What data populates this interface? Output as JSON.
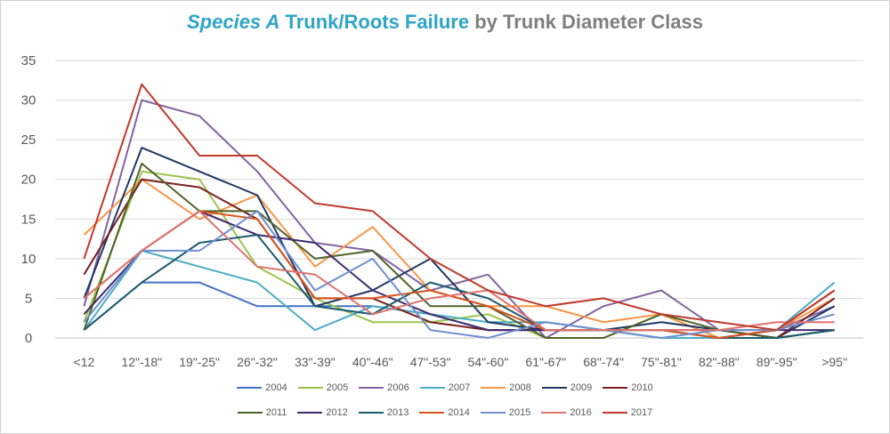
{
  "title": {
    "part1": "Species A",
    "part2": "Trunk/Roots  Failure",
    "part3": "by Trunk Diameter Class"
  },
  "chart_data": {
    "type": "line",
    "title": "Species A Trunk/Roots  Failure by Trunk Diameter Class",
    "xlabel": "",
    "ylabel": "",
    "ylim": [
      0,
      35
    ],
    "yticks": [
      0,
      5,
      10,
      15,
      20,
      25,
      30,
      35
    ],
    "grid": true,
    "legend_position": "bottom",
    "categories": [
      "<12",
      "12\"-18\"",
      "19\"-25\"",
      "26\"-32\"",
      "33\"-39\"",
      "40\"-46\"",
      "47\"-53\"",
      "54\"-60\"",
      "61\"-67\"",
      "68\"-74\"",
      "75\"-81\"",
      "82\"-88\"",
      "89\"-95\"",
      ">95\""
    ],
    "series": [
      {
        "name": "2004",
        "color": "#4472c4",
        "values": [
          1,
          7,
          7,
          4,
          4,
          4,
          3,
          1,
          1,
          1,
          0,
          0,
          0,
          1
        ]
      },
      {
        "name": "2005",
        "color": "#9bc54a",
        "values": [
          2,
          21,
          20,
          9,
          5,
          2,
          2,
          3,
          0,
          0,
          3,
          0,
          0,
          1
        ]
      },
      {
        "name": "2006",
        "color": "#8064a2",
        "values": [
          4,
          30,
          28,
          21,
          12,
          11,
          6,
          8,
          0,
          4,
          6,
          1,
          1,
          4
        ]
      },
      {
        "name": "2007",
        "color": "#4bacc6",
        "values": [
          1,
          11,
          9,
          7,
          1,
          4,
          3,
          2,
          2,
          1,
          0,
          0,
          1,
          7
        ]
      },
      {
        "name": "2008",
        "color": "#f79646",
        "values": [
          13,
          20,
          15,
          18,
          9,
          14,
          6,
          4,
          4,
          2,
          3,
          0,
          1,
          5
        ]
      },
      {
        "name": "2009",
        "color": "#1f3864",
        "values": [
          5,
          24,
          21,
          18,
          4,
          6,
          10,
          2,
          1,
          1,
          2,
          1,
          0,
          4
        ]
      },
      {
        "name": "2010",
        "color": "#7b1f1f",
        "values": [
          8,
          20,
          19,
          15,
          5,
          5,
          2,
          1,
          1,
          1,
          1,
          1,
          0,
          5
        ]
      },
      {
        "name": "2011",
        "color": "#4f6228",
        "values": [
          1,
          22,
          16,
          16,
          10,
          11,
          4,
          4,
          0,
          0,
          3,
          1,
          0,
          1
        ]
      },
      {
        "name": "2012",
        "color": "#3f2a70",
        "values": [
          3,
          11,
          16,
          13,
          12,
          6,
          3,
          1,
          1,
          1,
          1,
          0,
          1,
          1
        ]
      },
      {
        "name": "2013",
        "color": "#1c5b6e",
        "values": [
          1,
          7,
          12,
          13,
          4,
          3,
          7,
          5,
          1,
          1,
          1,
          0,
          0,
          1
        ]
      },
      {
        "name": "2014",
        "color": "#d9531e",
        "values": [
          5,
          11,
          16,
          15,
          5,
          5,
          6,
          4,
          1,
          1,
          1,
          0,
          1,
          6
        ]
      },
      {
        "name": "2015",
        "color": "#6f8fd0",
        "values": [
          2,
          11,
          11,
          16,
          6,
          10,
          1,
          0,
          2,
          1,
          0,
          1,
          1,
          3
        ]
      },
      {
        "name": "2016",
        "color": "#e0736e",
        "values": [
          5,
          11,
          16,
          9,
          8,
          3,
          5,
          6,
          1,
          1,
          1,
          1,
          2,
          2
        ]
      },
      {
        "name": "2017",
        "color": "#c0392b",
        "values": [
          10,
          32,
          23,
          23,
          17,
          16,
          10,
          6,
          4,
          5,
          3,
          2,
          1,
          6
        ]
      }
    ]
  }
}
